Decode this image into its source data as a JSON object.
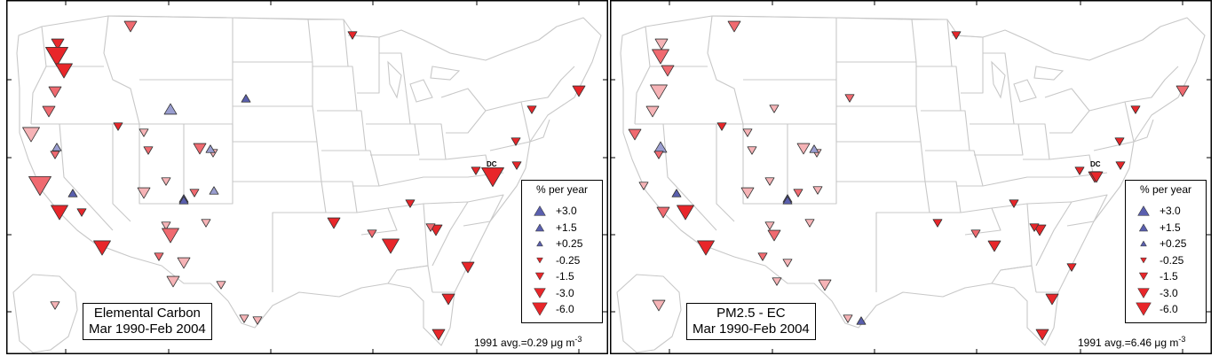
{
  "colors": {
    "increase": "#5a5fae",
    "increase_light": "#9a9ed0",
    "decrease_strong": "#e8262a",
    "decrease_mid": "#f06a70",
    "decrease_light": "#f6b3b6",
    "map_lines": "#c8c8c8"
  },
  "panels": [
    {
      "title_line1": "Elemental Carbon",
      "title_line2": "Mar 1990-Feb 2004",
      "avg_prefix": "1991 avg.=0.29 ",
      "avg_unit": "μg m",
      "avg_exp": "-3",
      "dc_label": "DC",
      "legend": {
        "title": "% per year",
        "items": [
          {
            "label": "+3.0",
            "dir": "up",
            "size": 3
          },
          {
            "label": "+1.5",
            "dir": "up",
            "size": 2
          },
          {
            "label": "+0.25",
            "dir": "up",
            "size": 1
          },
          {
            "label": "-0.25",
            "dir": "down",
            "size": 1
          },
          {
            "label": "-1.5",
            "dir": "down",
            "size": 2
          },
          {
            "label": "-3.0",
            "dir": "down",
            "size": 3
          },
          {
            "label": "-6.0",
            "dir": "down",
            "size": 4
          }
        ]
      }
    },
    {
      "title_line1": "PM2.5 - EC",
      "title_line2": "Mar 1990-Feb 2004",
      "avg_prefix": "1991 avg.=6.46 ",
      "avg_unit": "μg m",
      "avg_exp": "-3",
      "dc_label": "DC",
      "legend": {
        "title": "% per year",
        "items": [
          {
            "label": "+3.0",
            "dir": "up",
            "size": 3
          },
          {
            "label": "+1.5",
            "dir": "up",
            "size": 2
          },
          {
            "label": "+0.25",
            "dir": "up",
            "size": 1
          },
          {
            "label": "-0.25",
            "dir": "down",
            "size": 1
          },
          {
            "label": "-1.5",
            "dir": "down",
            "size": 2
          },
          {
            "label": "-3.0",
            "dir": "down",
            "size": 3
          },
          {
            "label": "-6.0",
            "dir": "down",
            "size": 4
          }
        ]
      }
    }
  ],
  "sites_ec": [
    {
      "dir": "down",
      "size": 2,
      "tone": "strong"
    },
    {
      "dir": "down",
      "size": 4,
      "tone": "strong"
    },
    {
      "dir": "down",
      "size": 3,
      "tone": "strong"
    },
    {
      "dir": "down",
      "size": 2,
      "tone": "mid"
    },
    {
      "dir": "down",
      "size": 2,
      "tone": "mid"
    },
    {
      "dir": "down",
      "size": 2,
      "tone": "mid"
    },
    {
      "dir": "down",
      "size": 3,
      "tone": "light"
    },
    {
      "dir": "down",
      "size": 4,
      "tone": "mid"
    },
    {
      "dir": "up",
      "size": 1,
      "tone": "light"
    },
    {
      "dir": "down",
      "size": 1,
      "tone": "mid"
    },
    {
      "dir": "up",
      "size": 1,
      "tone": "inc"
    },
    {
      "dir": "up",
      "size": 2,
      "tone": "light"
    },
    {
      "dir": "up",
      "size": 1,
      "tone": "inc"
    },
    {
      "dir": "down",
      "size": 3,
      "tone": "strong"
    },
    {
      "dir": "down",
      "size": 1,
      "tone": "strong"
    },
    {
      "dir": "down",
      "size": 3,
      "tone": "strong"
    },
    {
      "dir": "down",
      "size": 1,
      "tone": "light"
    },
    {
      "dir": "down",
      "size": 1,
      "tone": "mid"
    },
    {
      "dir": "down",
      "size": 2,
      "tone": "mid"
    },
    {
      "dir": "down",
      "size": 1,
      "tone": "light"
    },
    {
      "dir": "up",
      "size": 1,
      "tone": "light"
    },
    {
      "dir": "down",
      "size": 2,
      "tone": "light"
    },
    {
      "dir": "up",
      "size": 1,
      "tone": "inc"
    },
    {
      "dir": "down",
      "size": 1,
      "tone": "light"
    },
    {
      "dir": "down",
      "size": 1,
      "tone": "mid"
    },
    {
      "dir": "up",
      "size": 1,
      "tone": "inc"
    },
    {
      "dir": "up",
      "size": 1,
      "tone": "light"
    },
    {
      "dir": "down",
      "size": 1,
      "tone": "light"
    },
    {
      "dir": "down",
      "size": 3,
      "tone": "mid"
    },
    {
      "dir": "down",
      "size": 1,
      "tone": "light"
    },
    {
      "dir": "down",
      "size": 1,
      "tone": "mid"
    },
    {
      "dir": "down",
      "size": 2,
      "tone": "light"
    },
    {
      "dir": "down",
      "size": 2,
      "tone": "light"
    },
    {
      "dir": "down",
      "size": 1,
      "tone": "light"
    },
    {
      "dir": "down",
      "size": 1,
      "tone": "light"
    },
    {
      "dir": "down",
      "size": 1,
      "tone": "light"
    },
    {
      "dir": "down",
      "size": 1,
      "tone": "strong"
    },
    {
      "dir": "down",
      "size": 1,
      "tone": "strong"
    },
    {
      "dir": "down",
      "size": 2,
      "tone": "strong"
    },
    {
      "dir": "down",
      "size": 1,
      "tone": "strong"
    },
    {
      "dir": "down",
      "size": 1,
      "tone": "strong"
    },
    {
      "dir": "down",
      "size": 1,
      "tone": "strong"
    },
    {
      "dir": "down",
      "size": 1,
      "tone": "strong"
    },
    {
      "dir": "down",
      "size": 2,
      "tone": "strong"
    },
    {
      "dir": "down",
      "size": 1,
      "tone": "strong"
    },
    {
      "dir": "down",
      "size": 2,
      "tone": "strong"
    },
    {
      "dir": "down",
      "size": 3,
      "tone": "strong"
    },
    {
      "dir": "down",
      "size": 2,
      "tone": "strong"
    },
    {
      "dir": "down",
      "size": 2,
      "tone": "strong"
    },
    {
      "dir": "down",
      "size": 4,
      "tone": "strong"
    },
    {
      "dir": "down",
      "size": 1,
      "tone": "mid"
    },
    {
      "dir": "down",
      "size": 2,
      "tone": "strong"
    },
    {
      "dir": "down",
      "size": 1,
      "tone": "mid"
    },
    {
      "dir": "down",
      "size": 2,
      "tone": "strong"
    },
    {
      "dir": "down",
      "size": 1,
      "tone": "light"
    },
    {
      "dir": "down",
      "size": 1,
      "tone": "strong"
    }
  ],
  "sites_pm": [
    {
      "dir": "down",
      "size": 2,
      "tone": "light"
    },
    {
      "dir": "down",
      "size": 3,
      "tone": "mid"
    },
    {
      "dir": "down",
      "size": 2,
      "tone": "mid"
    },
    {
      "dir": "down",
      "size": 3,
      "tone": "light"
    },
    {
      "dir": "down",
      "size": 2,
      "tone": "light"
    },
    {
      "dir": "down",
      "size": 2,
      "tone": "mid"
    },
    {
      "dir": "down",
      "size": 2,
      "tone": "mid"
    },
    {
      "dir": "down",
      "size": 1,
      "tone": "light"
    },
    {
      "dir": "up",
      "size": 2,
      "tone": "light"
    },
    {
      "dir": "down",
      "size": 1,
      "tone": "mid"
    },
    {
      "dir": "up",
      "size": 1,
      "tone": "inc"
    },
    {
      "dir": "down",
      "size": 1,
      "tone": "light"
    },
    {
      "dir": "down",
      "size": 1,
      "tone": "mid"
    },
    {
      "dir": "down",
      "size": 2,
      "tone": "mid"
    },
    {
      "dir": "down",
      "size": 3,
      "tone": "strong"
    },
    {
      "dir": "down",
      "size": 3,
      "tone": "strong"
    },
    {
      "dir": "down",
      "size": 1,
      "tone": "light"
    },
    {
      "dir": "down",
      "size": 1,
      "tone": "light"
    },
    {
      "dir": "down",
      "size": 2,
      "tone": "light"
    },
    {
      "dir": "down",
      "size": 1,
      "tone": "light"
    },
    {
      "dir": "up",
      "size": 1,
      "tone": "light"
    },
    {
      "dir": "down",
      "size": 2,
      "tone": "light"
    },
    {
      "dir": "up",
      "size": 1,
      "tone": "inc"
    },
    {
      "dir": "down",
      "size": 1,
      "tone": "light"
    },
    {
      "dir": "down",
      "size": 1,
      "tone": "mid"
    },
    {
      "dir": "up",
      "size": 1,
      "tone": "inc"
    },
    {
      "dir": "down",
      "size": 1,
      "tone": "light"
    },
    {
      "dir": "down",
      "size": 1,
      "tone": "light"
    },
    {
      "dir": "down",
      "size": 2,
      "tone": "mid"
    },
    {
      "dir": "down",
      "size": 1,
      "tone": "light"
    },
    {
      "dir": "down",
      "size": 1,
      "tone": "mid"
    },
    {
      "dir": "down",
      "size": 1,
      "tone": "light"
    },
    {
      "dir": "down",
      "size": 1,
      "tone": "light"
    },
    {
      "dir": "down",
      "size": 2,
      "tone": "light"
    },
    {
      "dir": "down",
      "size": 1,
      "tone": "light"
    },
    {
      "dir": "up",
      "size": 1,
      "tone": "inc"
    },
    {
      "dir": "down",
      "size": 1,
      "tone": "strong"
    },
    {
      "dir": "down",
      "size": 1,
      "tone": "strong"
    },
    {
      "dir": "down",
      "size": 2,
      "tone": "mid"
    },
    {
      "dir": "down",
      "size": 1,
      "tone": "strong"
    },
    {
      "dir": "down",
      "size": 1,
      "tone": "strong"
    },
    {
      "dir": "down",
      "size": 1,
      "tone": "strong"
    },
    {
      "dir": "down",
      "size": 1,
      "tone": "strong"
    },
    {
      "dir": "down",
      "size": 2,
      "tone": "strong"
    },
    {
      "dir": "down",
      "size": 1,
      "tone": "strong"
    },
    {
      "dir": "down",
      "size": 1,
      "tone": "strong"
    },
    {
      "dir": "down",
      "size": 2,
      "tone": "strong"
    },
    {
      "dir": "down",
      "size": 2,
      "tone": "strong"
    },
    {
      "dir": "down",
      "size": 1,
      "tone": "strong"
    },
    {
      "dir": "down",
      "size": 2,
      "tone": "strong"
    },
    {
      "dir": "down",
      "size": 1,
      "tone": "strong"
    },
    {
      "dir": "down",
      "size": 2,
      "tone": "strong"
    },
    {
      "dir": "down",
      "size": 1,
      "tone": "mid"
    },
    {
      "dir": "down",
      "size": 2,
      "tone": "strong"
    },
    {
      "dir": "down",
      "size": 2,
      "tone": "light"
    },
    {
      "dir": "down",
      "size": 1,
      "tone": "strong"
    }
  ]
}
